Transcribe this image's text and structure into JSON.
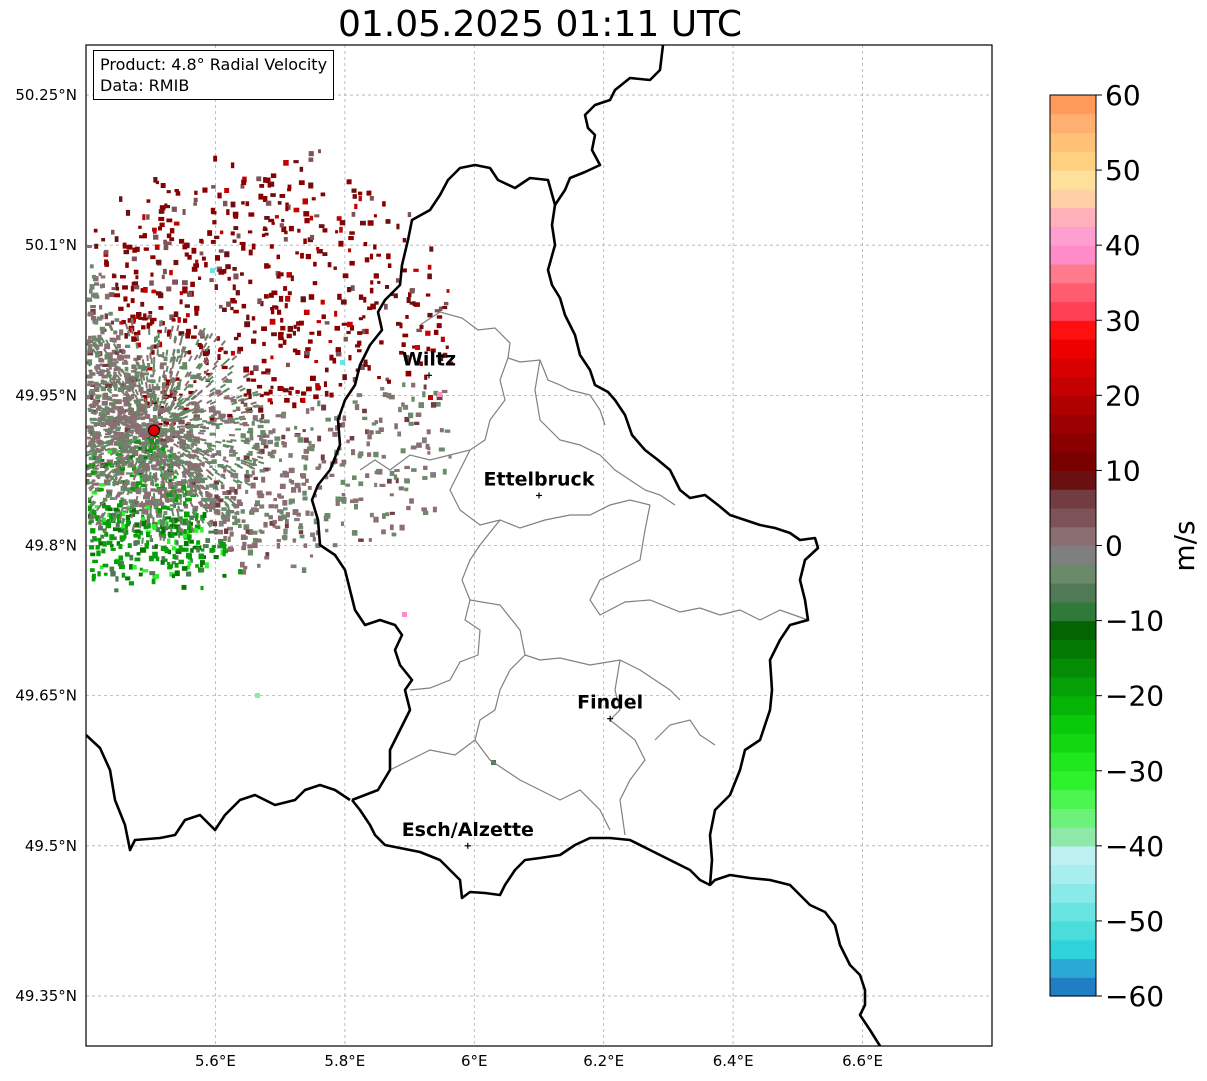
{
  "title": "01.05.2025 01:11 UTC",
  "info": {
    "product": "Product: 4.8° Radial Velocity",
    "data": "Data: RMIB"
  },
  "axes": {
    "lat_ticks": [
      "50.25°N",
      "50.1°N",
      "49.95°N",
      "49.8°N",
      "49.65°N",
      "49.5°N",
      "49.35°N"
    ],
    "lon_ticks": [
      "5.6°E",
      "5.8°E",
      "6°E",
      "6.2°E",
      "6.4°E",
      "6.6°E"
    ],
    "extent": {
      "lon_min": 5.4,
      "lon_max": 6.8,
      "lat_min": 49.3,
      "lat_max": 50.3
    }
  },
  "cities": [
    {
      "name": "Wiltz",
      "lon": 5.93,
      "lat": 49.97
    },
    {
      "name": "Ettelbruck",
      "lon": 6.1,
      "lat": 49.85
    },
    {
      "name": "Findel",
      "lon": 6.21,
      "lat": 49.627
    },
    {
      "name": "Esch/Alzette",
      "lon": 5.99,
      "lat": 49.5
    }
  ],
  "radar_site": {
    "lon": 5.505,
    "lat": 49.915,
    "color": "#e00000"
  },
  "colorbar": {
    "label": "m/s",
    "ticks": [
      "60",
      "50",
      "40",
      "30",
      "20",
      "10",
      "0",
      "−10",
      "−20",
      "−30",
      "−40",
      "−50",
      "−60"
    ],
    "min": -60,
    "max": 60,
    "colors": [
      "#1f7ec4",
      "#2aa9d4",
      "#30d2dc",
      "#4bdcdc",
      "#6ae3e3",
      "#8ae9e9",
      "#a8eeee",
      "#bdf0f0",
      "#8ee8a8",
      "#6cf27a",
      "#4cf550",
      "#2ef22e",
      "#1fe81f",
      "#12d812",
      "#0ac80a",
      "#06b406",
      "#05a005",
      "#048c04",
      "#037803",
      "#026502",
      "#2f7a3a",
      "#4f7a55",
      "#6a8a6a",
      "#7f7f7f",
      "#8a6e72",
      "#7d5358",
      "#733c43",
      "#6a1010",
      "#7a0000",
      "#8a0000",
      "#9c0000",
      "#b00000",
      "#c40000",
      "#d80000",
      "#ec0000",
      "#ff1010",
      "#ff4055",
      "#ff5c70",
      "#ff7a8c",
      "#ff8cc8",
      "#ff9ed0",
      "#ffb0bb",
      "#ffd0a6",
      "#ffe09a",
      "#ffd080",
      "#ffc078",
      "#ffb070",
      "#ff9a5a"
    ]
  }
}
